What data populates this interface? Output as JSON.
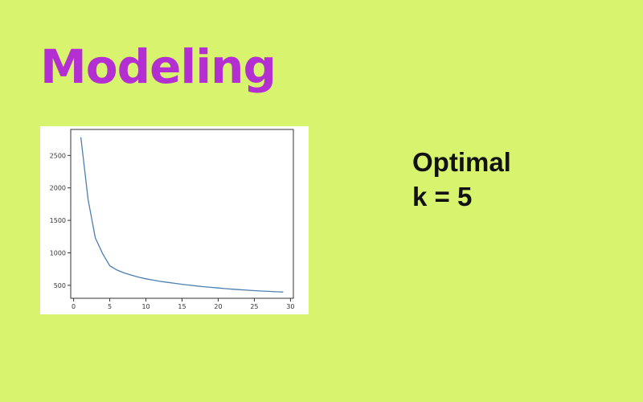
{
  "slide": {
    "title": "Modeling",
    "note_line1": "Optimal",
    "note_line2": "k = 5"
  },
  "colors": {
    "background": "#d8f46e",
    "title": "#b42fd1",
    "line": "#4c7fb0"
  },
  "chart_data": {
    "type": "line",
    "title": "",
    "xlabel": "",
    "ylabel": "",
    "xlim": [
      -0.4,
      30.4
    ],
    "ylim": [
      300,
      2900
    ],
    "xticks": [
      0,
      5,
      10,
      15,
      20,
      25,
      30
    ],
    "yticks": [
      500,
      1000,
      1500,
      2000,
      2500
    ],
    "grid": false,
    "series": [
      {
        "x": [
          1,
          2,
          3,
          4,
          5,
          6,
          7,
          8,
          9,
          10,
          11,
          12,
          13,
          14,
          15,
          16,
          17,
          18,
          19,
          20,
          21,
          22,
          23,
          24,
          25,
          26,
          27,
          28,
          29
        ],
        "y": [
          2780,
          1820,
          1230,
          990,
          800,
          735,
          690,
          655,
          625,
          600,
          580,
          560,
          545,
          530,
          515,
          503,
          490,
          478,
          468,
          458,
          448,
          440,
          432,
          425,
          418,
          412,
          406,
          400,
          396
        ]
      }
    ]
  }
}
